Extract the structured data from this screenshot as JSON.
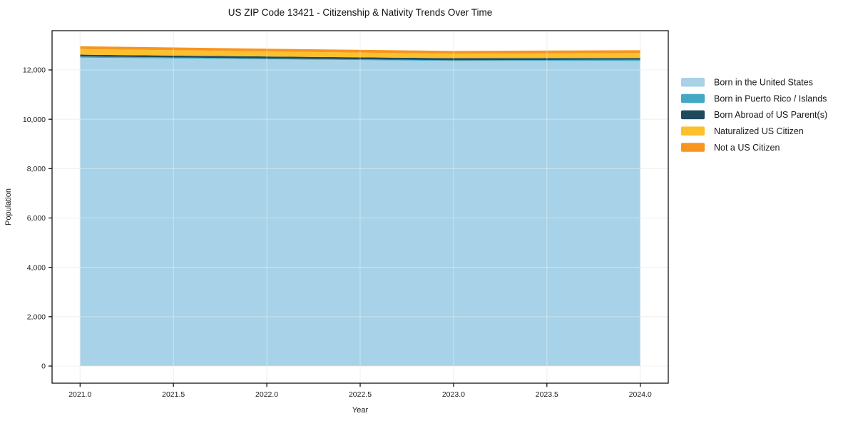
{
  "chart_data": {
    "type": "area",
    "stacked": true,
    "title": "US ZIP Code 13421 - Citizenship & Nativity Trends Over Time",
    "xlabel": "Year",
    "ylabel": "Population",
    "x": [
      2021,
      2022,
      2023,
      2024
    ],
    "series": [
      {
        "name": "Born in the United States",
        "color": "#A7D2E8",
        "values": [
          12500,
          12430,
          12365,
          12370
        ]
      },
      {
        "name": "Born in Puerto Rico / Islands",
        "color": "#43A7C6",
        "values": [
          45,
          35,
          30,
          45
        ]
      },
      {
        "name": "Born Abroad of US Parent(s)",
        "color": "#1F4A5C",
        "values": [
          75,
          80,
          80,
          70
        ]
      },
      {
        "name": "Naturalized US Citizen",
        "color": "#FCC02D",
        "values": [
          225,
          205,
          180,
          200
        ]
      },
      {
        "name": "Not a US Citizen",
        "color": "#F7951F",
        "values": [
          115,
          110,
          115,
          115
        ]
      }
    ],
    "x_ticks": [
      2021.0,
      2021.5,
      2022.0,
      2022.5,
      2023.0,
      2023.5,
      2024.0
    ],
    "x_tick_labels": [
      "2021.0",
      "2021.5",
      "2022.0",
      "2022.5",
      "2023.0",
      "2023.5",
      "2024.0"
    ],
    "y_ticks": [
      0,
      2000,
      4000,
      6000,
      8000,
      10000,
      12000
    ],
    "y_tick_labels": [
      "0",
      "2,000",
      "4,000",
      "6,000",
      "8,000",
      "10,000",
      "12,000"
    ],
    "xlim": [
      2020.85,
      2024.15
    ],
    "ylim": [
      -694,
      13590
    ],
    "grid": true,
    "legend_position": "right-outside"
  },
  "colors": {
    "grid": "#E6E6E6",
    "grid_over_area": "rgba(255,255,255,0.40)",
    "spine": "#000000",
    "background": "#FFFFFF"
  }
}
